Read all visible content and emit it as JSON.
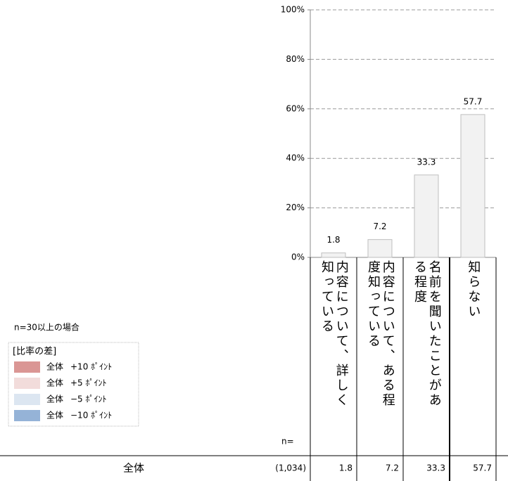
{
  "chart_data": {
    "type": "bar",
    "categories": [
      "内容について、詳しく知っている",
      "内容について、ある程度知っている",
      "名前を聞いたことがある程度",
      "知らない"
    ],
    "values": [
      1.8,
      7.2,
      33.3,
      57.7
    ],
    "color": "#f2f2f2",
    "ylim": [
      0,
      100
    ],
    "yticks": [
      {
        "value": 0,
        "label": "0%"
      },
      {
        "value": 20,
        "label": "20%"
      },
      {
        "value": 40,
        "label": "40%"
      },
      {
        "value": 60,
        "label": "60%"
      },
      {
        "value": 80,
        "label": "80%"
      },
      {
        "value": 100,
        "label": "100%"
      }
    ],
    "grid": true
  },
  "legend": {
    "note": "n=30以上の場合",
    "title": "[比率の差]",
    "rows": [
      {
        "label": "全体",
        "diff": "+10 ﾎﾟｲﾝﾄ",
        "color": "#da9694"
      },
      {
        "label": "全体",
        "diff": "+5 ﾎﾟｲﾝﾄ",
        "color": "#f2dcdb"
      },
      {
        "label": "全体",
        "diff": "−5 ﾎﾟｲﾝﾄ",
        "color": "#dce6f1"
      },
      {
        "label": "全体",
        "diff": "−10 ﾎﾟｲﾝﾄ",
        "color": "#95b3d7"
      }
    ]
  },
  "table": {
    "n_header": "n=",
    "row_label": "全体",
    "n": "(1,034)"
  }
}
